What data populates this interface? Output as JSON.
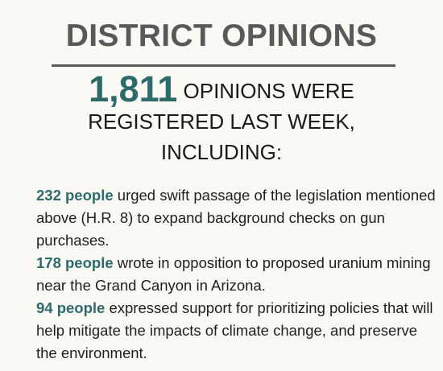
{
  "title": "DISTRICT OPINIONS",
  "headline": {
    "count": "1,811",
    "line1_rest": "OPINIONS WERE",
    "line2": "REGISTERED LAST WEEK,",
    "line3": "INCLUDING:"
  },
  "items": [
    {
      "count": "232 people",
      "text": "urged swift passage of the legislation mentioned above (H.R. 8) to expand background checks on gun purchases."
    },
    {
      "count": "178 people",
      "text": "wrote in opposition to proposed uranium mining near the Grand Canyon in Arizona."
    },
    {
      "count": "94 people",
      "text": "expressed support for prioritizing policies that will help mitigate the impacts of climate change, and preserve the environment."
    }
  ],
  "colors": {
    "accent": "#2d6b6b",
    "title": "#595959",
    "background": "#faf9f4"
  }
}
